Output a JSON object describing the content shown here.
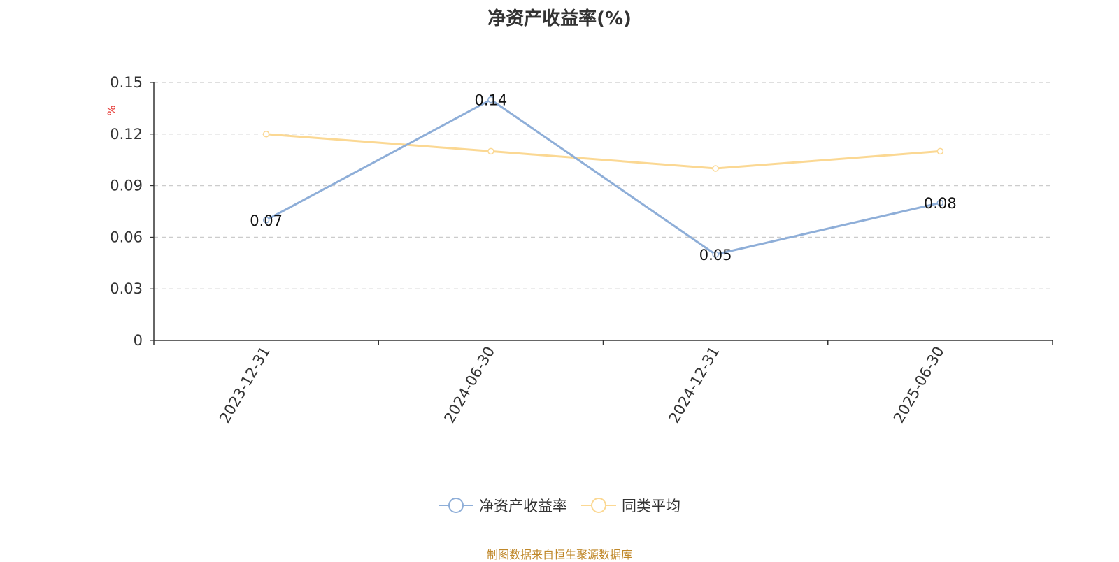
{
  "title": "净资产收益率(%)",
  "source_note": "制图数据来自恒生聚源数据库",
  "chart_data": {
    "type": "line",
    "title": "净资产收益率(%)",
    "ylabel": "%",
    "xlabel": "",
    "categories": [
      "2023-12-31",
      "2024-06-30",
      "2024-12-31",
      "2025-06-30"
    ],
    "ylim": [
      0,
      0.15
    ],
    "yticks": [
      0,
      0.03,
      0.06,
      0.09,
      0.12,
      0.15
    ],
    "ytick_labels": [
      "0",
      "0.03",
      "0.06",
      "0.09",
      "0.12",
      "0.15"
    ],
    "grid": true,
    "legend_position": "bottom",
    "series": [
      {
        "name": "净资产收益率",
        "color": "#8eaed8",
        "values": [
          0.07,
          0.14,
          0.05,
          0.08
        ],
        "data_labels": [
          "0.07",
          "0.14",
          "0.05",
          "0.08"
        ]
      },
      {
        "name": "同类平均",
        "color": "#fbd893",
        "values": [
          0.12,
          0.11,
          0.1,
          0.11
        ]
      }
    ]
  }
}
